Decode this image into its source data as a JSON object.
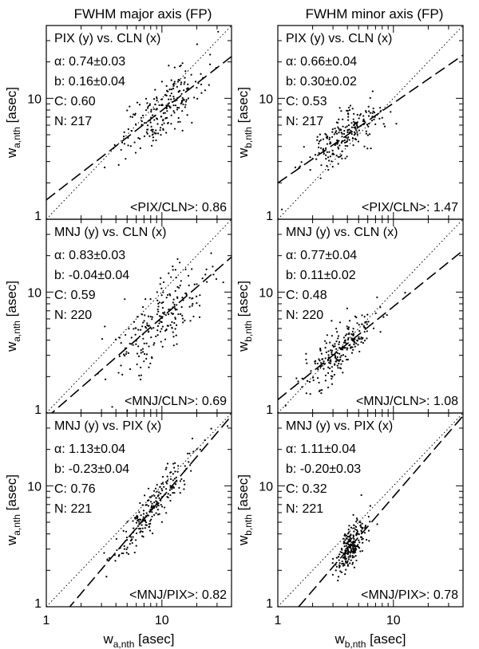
{
  "figure": {
    "column_titles": [
      "FWHM major axis (FP)",
      "FWHM minor axis (FP)"
    ],
    "x_axis_labels": [
      {
        "base": "w",
        "sub": "a,nth",
        "unit": " [asec]"
      },
      {
        "base": "w",
        "sub": "b,nth",
        "unit": " [asec]"
      }
    ],
    "tick_labels": [
      "1",
      "10"
    ]
  },
  "chart_data": [
    {
      "type": "scatter",
      "panel": "top-left",
      "title": "PIX (y) vs. CLN (x)",
      "ylabel": {
        "base": "w",
        "sub": "a,nth",
        "unit": " [asec]"
      },
      "xlim": [
        1,
        40
      ],
      "ylim": [
        1,
        40
      ],
      "log_x": true,
      "log_y": true,
      "stats": [
        "α: 0.74±0.03",
        "b: 0.16±0.04",
        "C: 0.60",
        "N: 217"
      ],
      "ratio_label": "<PIX/CLN>: 0.86",
      "fit": {
        "alpha": 0.74,
        "b": 0.16
      },
      "n_points": 217,
      "cloud": {
        "x_center": 10,
        "x_spread": 0.18,
        "y_spread": 0.12
      }
    },
    {
      "type": "scatter",
      "panel": "top-right",
      "title": "PIX (y) vs. CLN (x)",
      "ylabel": {
        "base": "w",
        "sub": "b,nth",
        "unit": " [asec]"
      },
      "xlim": [
        1,
        40
      ],
      "ylim": [
        1,
        40
      ],
      "log_x": true,
      "log_y": true,
      "stats": [
        "α: 0.66±0.04",
        "b: 0.30±0.02",
        "C: 0.53",
        "N: 217"
      ],
      "ratio_label": "<PIX/CLN>: 1.47",
      "fit": {
        "alpha": 0.66,
        "b": 0.3
      },
      "n_points": 217,
      "cloud": {
        "x_center": 3.6,
        "x_spread": 0.16,
        "y_spread": 0.09
      }
    },
    {
      "type": "scatter",
      "panel": "middle-left",
      "title": "MNJ (y) vs. CLN (x)",
      "ylabel": {
        "base": "w",
        "sub": "a,nth",
        "unit": " [asec]"
      },
      "xlim": [
        1,
        40
      ],
      "ylim": [
        1,
        40
      ],
      "log_x": true,
      "log_y": true,
      "stats": [
        "α: 0.83±0.03",
        "b: -0.04±0.04",
        "C: 0.59",
        "N: 220"
      ],
      "ratio_label": "<MNJ/CLN>: 0.69",
      "fit": {
        "alpha": 0.83,
        "b": -0.04
      },
      "n_points": 220,
      "cloud": {
        "x_center": 10,
        "x_spread": 0.2,
        "y_spread": 0.15
      }
    },
    {
      "type": "scatter",
      "panel": "middle-right",
      "title": "MNJ (y) vs. CLN (x)",
      "ylabel": {
        "base": "w",
        "sub": "b,nth",
        "unit": " [asec]"
      },
      "xlim": [
        1,
        40
      ],
      "ylim": [
        1,
        40
      ],
      "log_x": true,
      "log_y": true,
      "stats": [
        "α: 0.77±0.04",
        "b: 0.11±0.02",
        "C: 0.48",
        "N: 220"
      ],
      "ratio_label": "<MNJ/CLN>: 1.08",
      "fit": {
        "alpha": 0.77,
        "b": 0.11
      },
      "n_points": 220,
      "cloud": {
        "x_center": 3.4,
        "x_spread": 0.17,
        "y_spread": 0.1
      }
    },
    {
      "type": "scatter",
      "panel": "bottom-left",
      "title": "MNJ (y) vs. PIX (x)",
      "ylabel": {
        "base": "w",
        "sub": "a,nth",
        "unit": " [asec]"
      },
      "xlim": [
        1,
        40
      ],
      "ylim": [
        1,
        40
      ],
      "log_x": true,
      "log_y": true,
      "stats": [
        "α: 1.13±0.04",
        "b: -0.23±0.04",
        "C: 0.76",
        "N: 221"
      ],
      "ratio_label": "<MNJ/PIX>: 0.82",
      "fit": {
        "alpha": 1.13,
        "b": -0.23
      },
      "n_points": 221,
      "cloud": {
        "x_center": 8,
        "x_spread": 0.17,
        "y_spread": 0.09
      }
    },
    {
      "type": "scatter",
      "panel": "bottom-right",
      "title": "MNJ (y) vs. PIX (x)",
      "ylabel": {
        "base": "w",
        "sub": "b,nth",
        "unit": " [asec]"
      },
      "xlim": [
        1,
        40
      ],
      "ylim": [
        1,
        40
      ],
      "log_x": true,
      "log_y": true,
      "stats": [
        "α: 1.11±0.04",
        "b: -0.20±0.03",
        "C: 0.32",
        "N: 221"
      ],
      "ratio_label": "<MNJ/PIX>: 0.78",
      "fit": {
        "alpha": 1.11,
        "b": -0.2
      },
      "n_points": 221,
      "cloud": {
        "x_center": 4.3,
        "x_spread": 0.07,
        "y_spread": 0.08
      }
    }
  ]
}
